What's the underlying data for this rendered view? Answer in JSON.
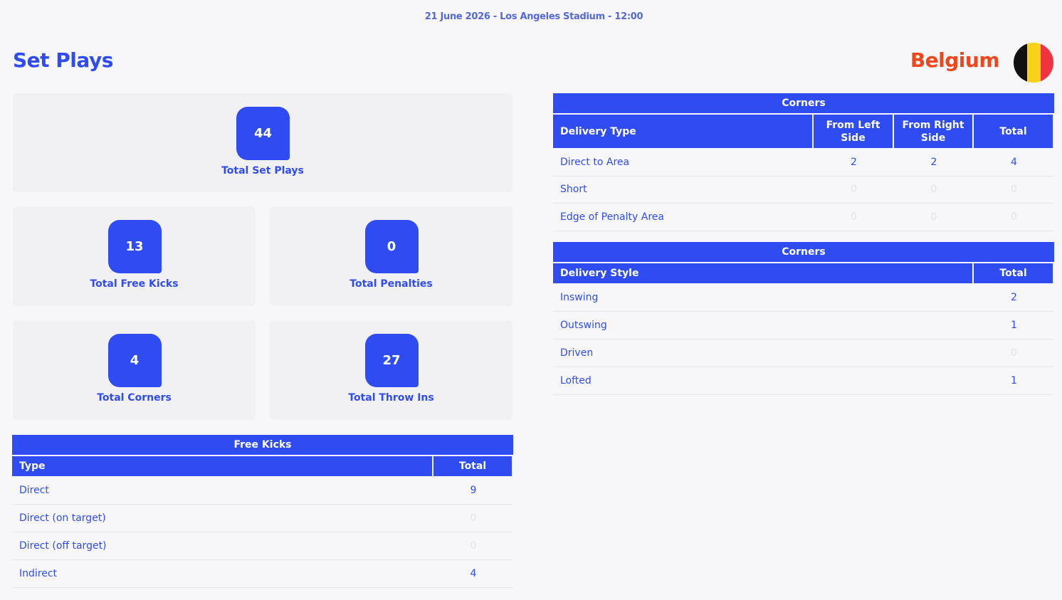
{
  "header": {
    "match_info": "21 June 2026 - Los Angeles Stadium - 12:00",
    "title": "Set Plays",
    "team": "Belgium"
  },
  "summary": [
    {
      "value": 44,
      "label": "Total Set Plays"
    },
    {
      "value": 13,
      "label": "Total Free Kicks"
    },
    {
      "value": 0,
      "label": "Total Penalties"
    },
    {
      "value": 4,
      "label": "Total Corners"
    },
    {
      "value": 27,
      "label": "Total Throw Ins"
    }
  ],
  "free_kicks": {
    "title": "Free Kicks",
    "columns": [
      "Type",
      "Total"
    ],
    "rows": [
      [
        "Direct",
        9
      ],
      [
        "Direct (on target)",
        0
      ],
      [
        "Direct (off target)",
        0
      ],
      [
        "Indirect",
        4
      ]
    ]
  },
  "corners_delivery_type": {
    "title": "Corners",
    "columns": [
      "Delivery Type",
      "From Left Side",
      "From Right Side",
      "Total"
    ],
    "rows": [
      [
        "Direct to Area",
        2,
        2,
        4
      ],
      [
        "Short",
        0,
        0,
        0
      ],
      [
        "Edge of Penalty Area",
        0,
        0,
        0
      ]
    ]
  },
  "corners_delivery_style": {
    "title": "Corners",
    "columns": [
      "Delivery Style",
      "Total"
    ],
    "rows": [
      [
        "Inswing",
        2
      ],
      [
        "Outswing",
        1
      ],
      [
        "Driven",
        0
      ],
      [
        "Lofted",
        1
      ]
    ]
  }
}
